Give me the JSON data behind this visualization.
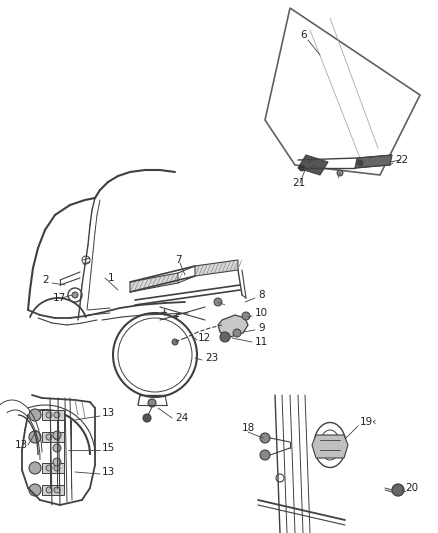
{
  "bg_color": "#ffffff",
  "line_color": "#404040",
  "label_color": "#222222",
  "fig_w": 4.38,
  "fig_h": 5.33,
  "dpi": 100
}
